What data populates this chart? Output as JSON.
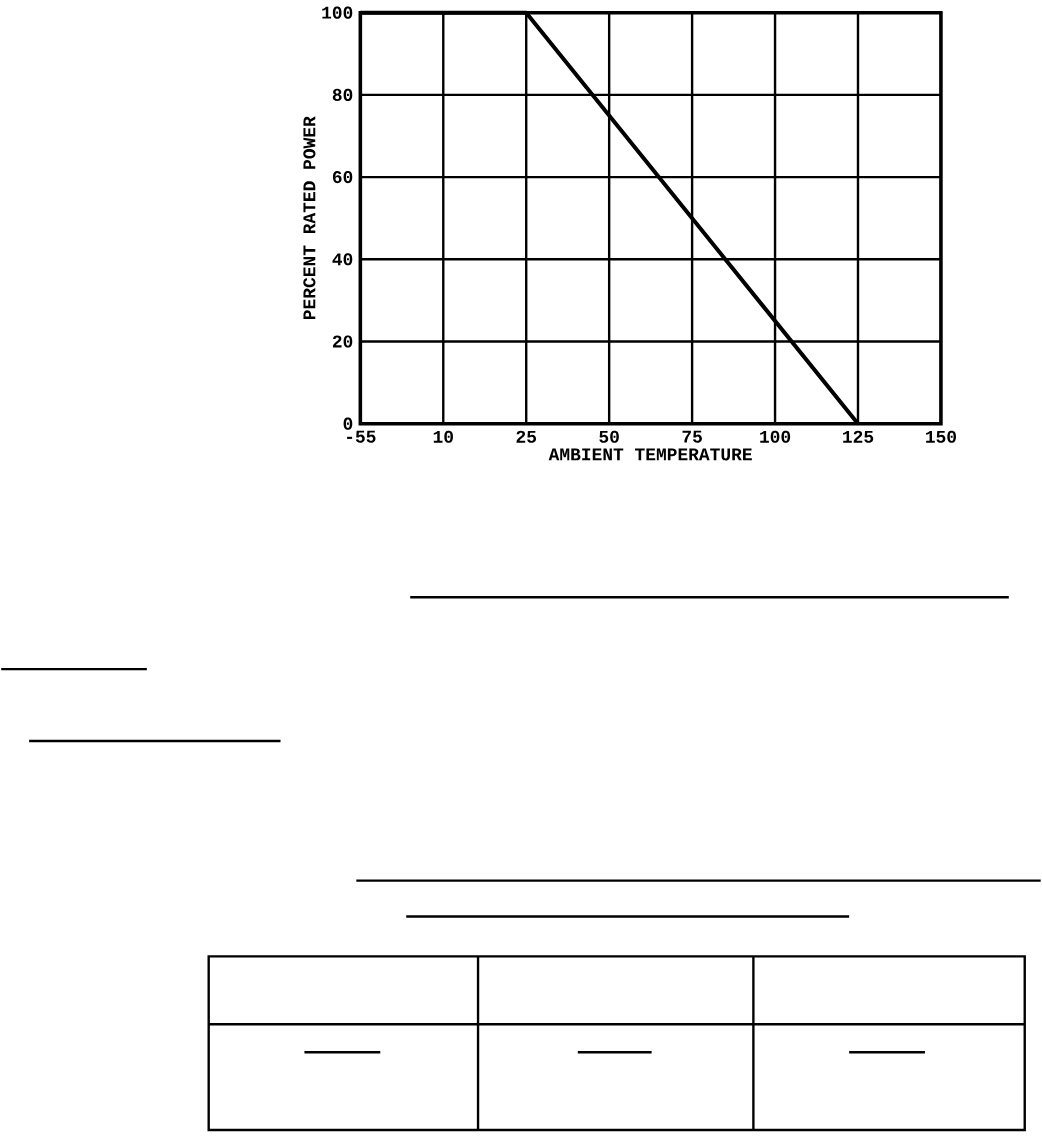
{
  "chart_data": {
    "type": "line",
    "xlabel": "AMBIENT TEMPERATURE",
    "ylabel": "PERCENT RATED POWER",
    "categories": [
      "-55",
      "10",
      "25",
      "50",
      "75",
      "100",
      "125",
      "150"
    ],
    "values": [
      100,
      100,
      100,
      75,
      50,
      25,
      0,
      null
    ],
    "color": "#000000",
    "ylim": [
      0,
      100
    ],
    "yticks": [
      0,
      20,
      40,
      60,
      80,
      100
    ],
    "grid": true,
    "marker": "none",
    "line_style": "solid"
  }
}
